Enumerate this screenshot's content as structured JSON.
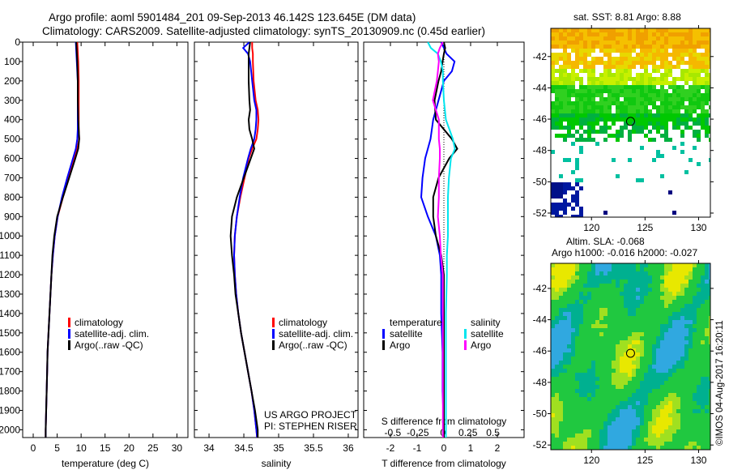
{
  "title": {
    "line1": "Argo profile: aoml 5901484_201 09-Sep-2013 46.142S 123.645E (DM data)",
    "line2": "Climatology: CARS2009. Satellite-adjusted climatology: synTS_20130909.nc (0.45d earlier)"
  },
  "colors": {
    "climatology": "#ff0000",
    "satellite": "#0000ff",
    "argo": "#000000",
    "sal_satellite": "#00e5ee",
    "sal_argo": "#ff00ff"
  },
  "chart_data": [
    {
      "type": "line",
      "id": "temperature",
      "xlabel": "temperature (deg C)",
      "xlim": [
        -2.2,
        32.3
      ],
      "ylim": [
        0,
        2040
      ],
      "xticks": [
        0,
        5,
        10,
        15,
        20,
        25,
        30
      ],
      "yticks": [
        0,
        100,
        200,
        300,
        400,
        500,
        600,
        700,
        800,
        900,
        1000,
        1100,
        1200,
        1300,
        1400,
        1500,
        1600,
        1700,
        1800,
        1900,
        2000
      ],
      "depth": [
        0,
        50,
        100,
        200,
        300,
        400,
        450,
        500,
        550,
        600,
        700,
        800,
        900,
        1000,
        1100,
        1200,
        1300,
        1400,
        1500,
        1600,
        1700,
        1800,
        1900,
        2000,
        2040
      ],
      "series": [
        {
          "name": "climatology",
          "color": "#ff0000",
          "values": [
            9.2,
            9.3,
            9.4,
            9.5,
            9.5,
            9.5,
            9.5,
            9.6,
            9.2,
            8.6,
            7.4,
            6.2,
            5.1,
            4.5,
            4.1,
            3.8,
            3.6,
            3.4,
            3.2,
            3.0,
            2.9,
            2.8,
            2.7,
            2.6,
            2.6
          ]
        },
        {
          "name": "satellite-adj. clim.",
          "color": "#0000ff",
          "values": [
            8.9,
            9.0,
            9.1,
            9.3,
            9.3,
            9.3,
            9.3,
            9.2,
            8.9,
            8.3,
            7.1,
            6.0,
            5.1,
            4.5,
            4.1,
            3.8,
            3.6,
            3.4,
            3.2,
            3.0,
            2.9,
            2.8,
            2.7,
            2.6,
            2.6
          ]
        },
        {
          "name": "Argo(..raw -QC)",
          "color": "#000000",
          "values": [
            9.0,
            9.1,
            9.2,
            9.3,
            9.3,
            9.4,
            9.5,
            9.6,
            9.4,
            8.8,
            7.5,
            6.2,
            5.0,
            4.4,
            4.0,
            3.8,
            3.6,
            3.4,
            3.2,
            3.0,
            2.9,
            2.8,
            2.7,
            2.6,
            2.6
          ]
        }
      ]
    },
    {
      "type": "line",
      "id": "salinity",
      "xlabel": "salinity",
      "xlim": [
        33.79,
        36.14
      ],
      "ylim": [
        0,
        2040
      ],
      "xticks": [
        34,
        34.5,
        35,
        35.5,
        36
      ],
      "depth": [
        0,
        30,
        60,
        100,
        200,
        300,
        350,
        400,
        450,
        500,
        550,
        600,
        700,
        800,
        900,
        1000,
        1100,
        1200,
        1300,
        1400,
        1500,
        1600,
        1700,
        1800,
        1900,
        2000,
        2040
      ],
      "series": [
        {
          "name": "climatology",
          "color": "#ff0000",
          "values": [
            34.62,
            34.62,
            34.63,
            34.63,
            34.64,
            34.67,
            34.7,
            34.71,
            34.7,
            34.68,
            34.62,
            34.57,
            34.51,
            34.45,
            34.4,
            34.37,
            34.36,
            34.37,
            34.39,
            34.42,
            34.46,
            34.51,
            34.56,
            34.61,
            34.65,
            34.68,
            34.69
          ]
        },
        {
          "name": "satellite-adj. clim.",
          "color": "#0000ff",
          "values": [
            34.58,
            34.49,
            34.56,
            34.59,
            34.62,
            34.65,
            34.68,
            34.68,
            34.67,
            34.65,
            34.6,
            34.56,
            34.49,
            34.44,
            34.4,
            34.37,
            34.36,
            34.37,
            34.39,
            34.42,
            34.46,
            34.51,
            34.56,
            34.61,
            34.65,
            34.68,
            34.69
          ]
        },
        {
          "name": "Argo(..raw -QC)",
          "color": "#000000",
          "values": [
            34.59,
            34.58,
            34.57,
            34.57,
            34.57,
            34.58,
            34.59,
            34.57,
            34.58,
            34.62,
            34.65,
            34.6,
            34.5,
            34.4,
            34.33,
            34.31,
            34.33,
            34.36,
            34.38,
            34.42,
            34.46,
            34.51,
            34.56,
            34.61,
            34.66,
            34.7,
            34.7
          ]
        }
      ],
      "annotations": [
        "US ARGO PROJECT",
        "PI: STEPHEN RISER"
      ]
    },
    {
      "type": "line",
      "id": "difference",
      "xlabel": "T difference from climatology",
      "x2label": "S difference from climatology",
      "xlim": [
        -3,
        3
      ],
      "x2lim": [
        -0.79,
        0.81
      ],
      "ylim": [
        0,
        2040
      ],
      "xticks": [
        -2,
        -1,
        0,
        1,
        2
      ],
      "x2ticks": [
        -0.5,
        -0.25,
        0,
        0.25,
        0.5
      ],
      "x2ticklabels": [
        "-0.5",
        "-0.25",
        "0",
        "0.25",
        "0.5"
      ],
      "depth": [
        0,
        30,
        60,
        100,
        150,
        200,
        300,
        400,
        500,
        550,
        600,
        700,
        800,
        900,
        1000,
        1100,
        1200,
        1400,
        1600,
        1800,
        2000,
        2040
      ],
      "series": [
        {
          "name": "temperature satellite",
          "axis": "T",
          "color": "#0000ff",
          "values": [
            -0.1,
            0.0,
            0.1,
            0.4,
            0.3,
            0.0,
            -0.2,
            -0.4,
            -0.5,
            -0.6,
            -0.7,
            -0.8,
            -0.85,
            -0.6,
            -0.3,
            -0.15,
            -0.1,
            -0.1,
            -0.05,
            -0.05,
            0.0,
            0.0
          ]
        },
        {
          "name": "temperature Argo",
          "axis": "T",
          "color": "#000000",
          "values": [
            0.0,
            0.05,
            0.0,
            -0.05,
            -0.1,
            -0.2,
            -0.35,
            -0.3,
            0.3,
            0.5,
            0.2,
            -0.2,
            -0.4,
            -0.4,
            -0.3,
            -0.1,
            0.0,
            0.0,
            0.0,
            0.0,
            0.0,
            0.0
          ]
        },
        {
          "name": "salinity satellite",
          "axis": "S",
          "color": "#00e5ee",
          "values": [
            -0.15,
            -0.12,
            -0.05,
            -0.02,
            0.0,
            0.0,
            0.01,
            0.03,
            0.1,
            0.12,
            0.08,
            0.06,
            0.05,
            0.05,
            0.05,
            0.04,
            0.04,
            0.03,
            0.03,
            0.03,
            0.03,
            0.03
          ]
        },
        {
          "name": "salinity Argo",
          "axis": "S",
          "color": "#ff00ff",
          "values": [
            0.0,
            -0.03,
            -0.05,
            -0.04,
            -0.05,
            -0.06,
            -0.1,
            -0.04,
            -0.04,
            -0.03,
            -0.03,
            -0.04,
            -0.04,
            -0.05,
            -0.03,
            -0.02,
            0.0,
            0.0,
            0.0,
            0.0,
            0.0,
            0.0
          ]
        }
      ],
      "legend": {
        "temperature_header": "temperature",
        "salinity_header": "salinity",
        "satellite": "satellite",
        "argo": "Argo"
      }
    }
  ],
  "legend": {
    "climatology": "climatology",
    "satellite": "satellite-adj. clim.",
    "argo": "Argo(..raw -QC)"
  },
  "maps": {
    "sst": {
      "title": "sat. SST: 8.81  Argo: 8.88",
      "lon_ticks": [
        120,
        125,
        130
      ],
      "lat_ticks": [
        -42,
        -44,
        -46,
        -48,
        -50,
        -52
      ],
      "lonlim": [
        116.2,
        131.1
      ],
      "latlim": [
        -52.26,
        -40.2
      ],
      "profile_lon": 123.645,
      "profile_lat": -46.142
    },
    "sla": {
      "title1": "Altim. SLA: -0.068",
      "title2": "Argo h1000: -0.016 h2000: -0.027",
      "lon_ticks": [
        120,
        125,
        130
      ],
      "lat_ticks": [
        -42,
        -44,
        -46,
        -48,
        -50,
        -52
      ],
      "lonlim": [
        116.2,
        131.1
      ],
      "latlim": [
        -52.3,
        -40.4
      ],
      "profile_lon": 123.645,
      "profile_lat": -46.142
    }
  },
  "watermark": "©IMOS 04-Aug-2017 16:20:11"
}
